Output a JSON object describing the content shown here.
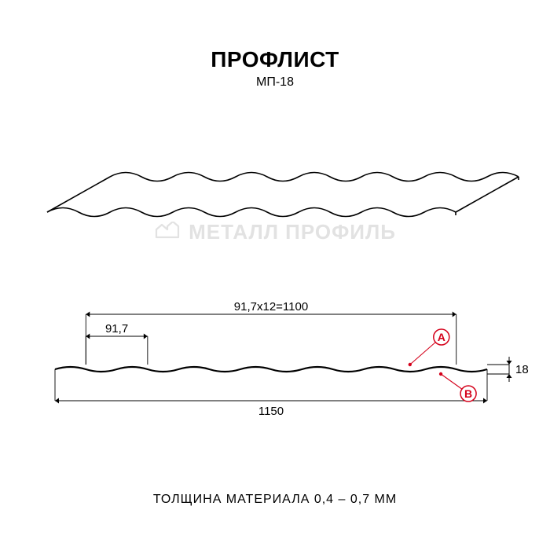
{
  "header": {
    "title": "ПРОФЛИСТ",
    "subtitle": "МП-18",
    "title_fontsize": 28,
    "title_weight": 900,
    "subtitle_fontsize": 16
  },
  "watermark": {
    "text": "МЕТАЛЛ ПРОФИЛЬ",
    "color": "#e2e2e2",
    "fontsize": 26
  },
  "footer": {
    "text": "ТОЛЩИНА МАТЕРИАЛА 0,4 – 0,7 ММ",
    "fontsize": 16
  },
  "isometric": {
    "type": "technical-3d-profile",
    "waves": 13,
    "stroke_color": "#000000",
    "stroke_width": 1.6,
    "skew_dx": 80,
    "amplitude": 11,
    "period": 40
  },
  "cross_section": {
    "type": "technical-cross-section",
    "wave_period_mm": 91.7,
    "wave_count": 12,
    "working_width_mm": 1100,
    "total_width_mm": 1150,
    "height_mm": 18,
    "labels": {
      "top_dim": "91,7x12=1100",
      "pitch": "91,7",
      "bottom_dim": "1150",
      "height": "18",
      "marker_A": "A",
      "marker_B": "B"
    },
    "stroke_color": "#000000",
    "stroke_width": 1.2,
    "accent_color": "#d4001a",
    "dim_fontsize": 15
  },
  "colors": {
    "background": "#ffffff",
    "ink": "#000000",
    "accent": "#d4001a",
    "watermark": "#e2e2e2"
  }
}
